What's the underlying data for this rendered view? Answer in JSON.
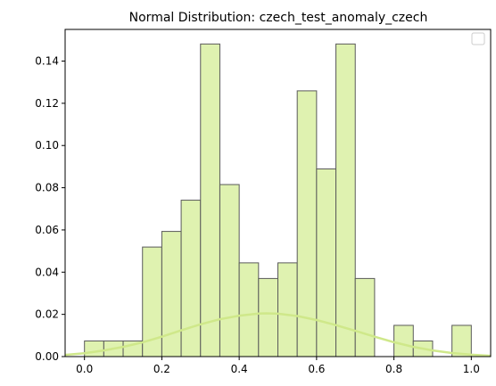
{
  "chart_data": {
    "type": "bar",
    "title": "Normal Distribution: czech_test_anomaly_czech",
    "xlabel": "",
    "ylabel": "",
    "xlim": [
      -0.05,
      1.05
    ],
    "ylim": [
      0,
      0.155
    ],
    "x_ticks": [
      "0.0",
      "0.2",
      "0.4",
      "0.6",
      "0.8",
      "1.0"
    ],
    "y_ticks": [
      "0.00",
      "0.02",
      "0.04",
      "0.06",
      "0.08",
      "0.10",
      "0.12",
      "0.14"
    ],
    "bin_edges": [
      0.0,
      0.05,
      0.1,
      0.15,
      0.2,
      0.25,
      0.3,
      0.35,
      0.4,
      0.45,
      0.5,
      0.55,
      0.6,
      0.65,
      0.7,
      0.75,
      0.8,
      0.85,
      0.9,
      0.95,
      1.0
    ],
    "histogram": {
      "values": [
        0.0074,
        0.0074,
        0.0074,
        0.0519,
        0.0593,
        0.0741,
        0.1481,
        0.0815,
        0.0444,
        0.037,
        0.0444,
        0.1259,
        0.0889,
        0.1481,
        0.037,
        0.0,
        0.0148,
        0.0074,
        0.0,
        0.0148
      ],
      "fill_color": "#dff2b0",
      "edge_color": "#5a5a5a"
    },
    "curve": {
      "x": [
        -0.05,
        0.0,
        0.05,
        0.1,
        0.15,
        0.2,
        0.25,
        0.3,
        0.35,
        0.4,
        0.45,
        0.47,
        0.5,
        0.55,
        0.6,
        0.65,
        0.7,
        0.75,
        0.8,
        0.85,
        0.9,
        0.95,
        1.0,
        1.05
      ],
      "y": [
        0.0008,
        0.0016,
        0.0029,
        0.0046,
        0.0067,
        0.0094,
        0.0124,
        0.0153,
        0.0177,
        0.0194,
        0.0204,
        0.0205,
        0.0203,
        0.0192,
        0.0173,
        0.0149,
        0.0122,
        0.0094,
        0.0068,
        0.0046,
        0.0029,
        0.0017,
        0.0009,
        0.0004
      ],
      "color": "#cfe88a"
    },
    "grid": false,
    "legend": "top-right (empty)"
  }
}
